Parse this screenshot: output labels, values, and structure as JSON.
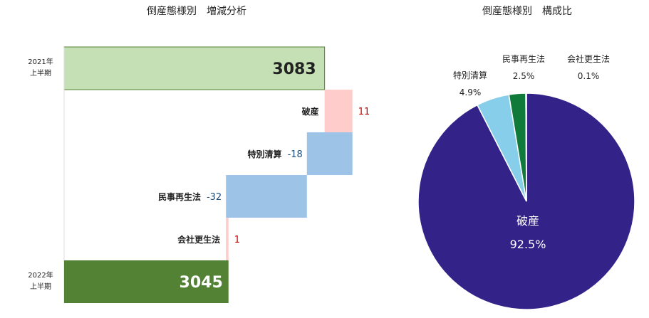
{
  "chart_data": [
    {
      "type": "bar",
      "subtype": "waterfall",
      "title": "倒産態様別　増減分析",
      "start": {
        "label_line1": "2021年",
        "label_line2": "上半期",
        "value": 3083,
        "display": "3083",
        "color": "#c5e0b4"
      },
      "steps": [
        {
          "label": "破産",
          "delta": 11,
          "display": "11",
          "color": "#ffcccc",
          "label_color": "#c00000"
        },
        {
          "label": "特別清算",
          "delta": -18,
          "display": "-18",
          "color": "#9dc3e6",
          "label_color": "#1f4e79"
        },
        {
          "label": "民事再生法",
          "delta": -32,
          "display": "-32",
          "color": "#9dc3e6",
          "label_color": "#1f4e79"
        },
        {
          "label": "会社更生法",
          "delta": 1,
          "display": "1",
          "color": "#ffcccc",
          "label_color": "#c00000"
        }
      ],
      "end": {
        "label_line1": "2022年",
        "label_line2": "上半期",
        "value": 3045,
        "display": "3045",
        "color": "#548235"
      },
      "xlim": [
        2980,
        3100
      ]
    },
    {
      "type": "pie",
      "title": "倒産態様別　構成比",
      "slices": [
        {
          "label": "破産",
          "value": 92.5,
          "display": "92.5%",
          "color": "#332288"
        },
        {
          "label": "特別清算",
          "value": 4.9,
          "display": "4.9%",
          "color": "#87ceeb"
        },
        {
          "label": "民事再生法",
          "value": 2.5,
          "display": "2.5%",
          "color": "#0f7a3a"
        },
        {
          "label": "会社更生法",
          "value": 0.1,
          "display": "0.1%",
          "color": "#e6194b"
        }
      ]
    }
  ]
}
